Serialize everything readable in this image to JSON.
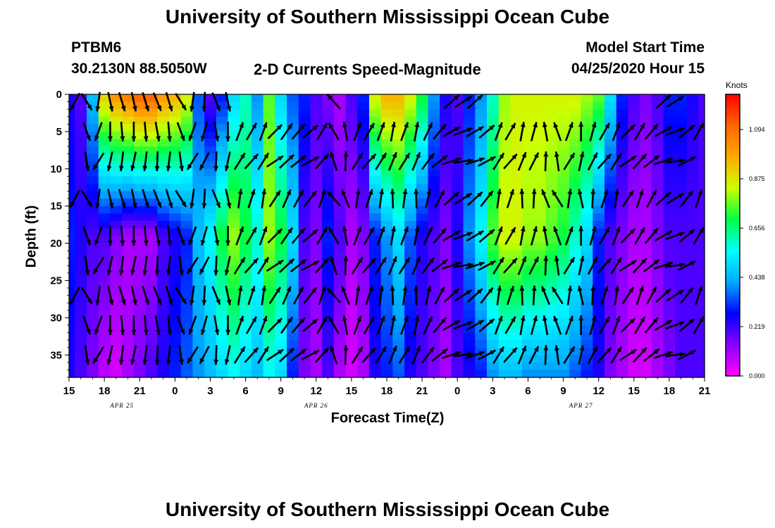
{
  "header": {
    "title": "University of Southern Mississippi Ocean Cube",
    "station": "PTBM6",
    "coords": "30.2130N 88.5050W",
    "subtitle": "2-D Currents Speed-Magnitude",
    "model_start_label": "Model Start Time",
    "model_start_value": "04/25/2020 Hour 15"
  },
  "footer": {
    "title": "University of Southern Mississippi Ocean Cube"
  },
  "colors": {
    "scale": [
      "#ff00ff",
      "#8800ff",
      "#0000ff",
      "#00aaff",
      "#00ffff",
      "#00ff44",
      "#ccff00",
      "#ffaa00",
      "#ff6600",
      "#ff0000"
    ]
  },
  "chart_data": {
    "type": "heatmap",
    "xlabel": "Forecast Time(Z)",
    "ylabel": "Depth (ft)",
    "x_ticks": [
      "15",
      "18",
      "21",
      "0",
      "3",
      "6",
      "9",
      "12",
      "15",
      "18",
      "21",
      "0",
      "3",
      "6",
      "9",
      "12",
      "15",
      "18",
      "21"
    ],
    "date_labels": [
      {
        "label": "APR 25",
        "x_hours": 4.5
      },
      {
        "label": "APR 26",
        "x_hours": 21
      },
      {
        "label": "APR 27",
        "x_hours": 43.5
      }
    ],
    "x_range_hours": [
      0,
      54
    ],
    "ylim": [
      0,
      38
    ],
    "y_ticks": [
      0,
      5,
      10,
      15,
      20,
      25,
      30,
      35
    ],
    "colorbar": {
      "label": "Knots",
      "ticks": [
        "0.000",
        "0.219",
        "0.438",
        "0.656",
        "0.875",
        "1.094"
      ],
      "max": 1.25
    },
    "speed_profile": {
      "description_hours": [
        0,
        1,
        2,
        3,
        4,
        5,
        6,
        7,
        8,
        9,
        10,
        11,
        12,
        13,
        14,
        15,
        16,
        17,
        18,
        19,
        20,
        21,
        22,
        23,
        24,
        25,
        26,
        27,
        28,
        29,
        30,
        31,
        32,
        33,
        34,
        35,
        36,
        37,
        38,
        39,
        40,
        41,
        42,
        43,
        44,
        45,
        46,
        47,
        48,
        49,
        50,
        51,
        52,
        53,
        54
      ],
      "surface": [
        0.25,
        0.2,
        0.45,
        0.9,
        1.0,
        1.05,
        1.1,
        1.1,
        1.0,
        0.95,
        0.85,
        0.35,
        0.2,
        0.3,
        0.5,
        0.6,
        0.4,
        0.75,
        0.5,
        0.35,
        0.3,
        0.2,
        0.15,
        0.1,
        0.2,
        0.3,
        0.85,
        0.95,
        0.95,
        0.85,
        0.7,
        0.4,
        0.25,
        0.2,
        0.3,
        0.4,
        0.6,
        0.8,
        0.85,
        0.85,
        0.85,
        0.85,
        0.85,
        0.85,
        0.8,
        0.75,
        0.5,
        0.3,
        0.2,
        0.15,
        0.2,
        0.3,
        0.3,
        0.25,
        0.2
      ],
      "mid": [
        0.3,
        0.25,
        0.2,
        0.2,
        0.15,
        0.1,
        0.1,
        0.1,
        0.2,
        0.25,
        0.3,
        0.45,
        0.55,
        0.7,
        0.8,
        0.7,
        0.6,
        0.8,
        0.7,
        0.5,
        0.2,
        0.15,
        0.3,
        0.2,
        0.1,
        0.15,
        0.3,
        0.4,
        0.5,
        0.35,
        0.25,
        0.2,
        0.15,
        0.25,
        0.4,
        0.55,
        0.75,
        0.85,
        0.85,
        0.8,
        0.8,
        0.75,
        0.7,
        0.6,
        0.5,
        0.3,
        0.2,
        0.15,
        0.1,
        0.1,
        0.15,
        0.2,
        0.2,
        0.2,
        0.2
      ],
      "bottom": [
        0.25,
        0.2,
        0.15,
        0.08,
        0.05,
        0.1,
        0.15,
        0.2,
        0.25,
        0.3,
        0.35,
        0.4,
        0.45,
        0.5,
        0.55,
        0.5,
        0.45,
        0.55,
        0.5,
        0.3,
        0.15,
        0.1,
        0.2,
        0.1,
        0.05,
        0.1,
        0.25,
        0.3,
        0.35,
        0.25,
        0.2,
        0.15,
        0.1,
        0.2,
        0.25,
        0.3,
        0.4,
        0.45,
        0.45,
        0.4,
        0.4,
        0.4,
        0.4,
        0.35,
        0.3,
        0.25,
        0.15,
        0.1,
        0.05,
        0.05,
        0.1,
        0.15,
        0.2,
        0.2,
        0.2
      ]
    },
    "vectors_direction_by_column_deg": [
      220,
      160,
      200,
      180,
      175,
      180,
      175,
      170,
      175,
      160,
      200,
      195,
      170,
      180,
      20,
      30,
      20,
      45,
      35,
      40,
      50,
      30,
      330,
      350,
      20,
      30,
      20,
      10,
      20,
      10,
      25,
      40,
      60,
      70,
      60,
      50,
      20,
      30,
      10,
      15,
      350,
      340,
      20,
      0,
      15,
      30,
      20,
      45,
      30,
      40,
      60,
      70,
      50,
      30
    ]
  }
}
